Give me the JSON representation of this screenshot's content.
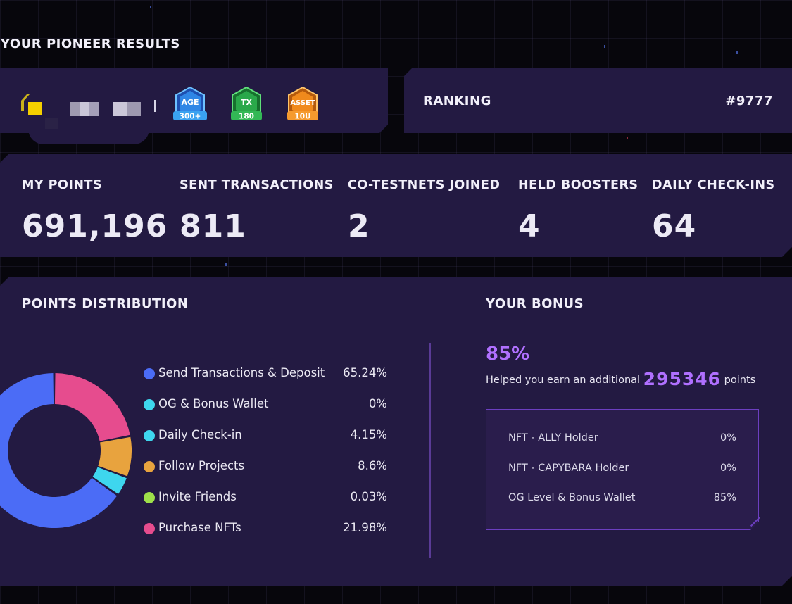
{
  "page_title": "YOUR PIONEER RESULTS",
  "badges": [
    {
      "name": "AGE",
      "value": "300+",
      "color": "#2f86e6"
    },
    {
      "name": "TX",
      "value": "180",
      "color": "#2aa84a"
    },
    {
      "name": "ASSET",
      "value": "10U",
      "color": "#f08a1c"
    }
  ],
  "ranking": {
    "label": "RANKING",
    "value": "#9777"
  },
  "stats": [
    {
      "label": "MY POINTS",
      "value": "691,196"
    },
    {
      "label": "SENT TRANSACTIONS",
      "value": "811"
    },
    {
      "label": "CO-TESTNETS JOINED",
      "value": "2"
    },
    {
      "label": "HELD BOOSTERS",
      "value": "4"
    },
    {
      "label": "DAILY CHECK-INS",
      "value": "64"
    }
  ],
  "distribution": {
    "title": "POINTS DISTRIBUTION",
    "items": [
      {
        "label": "Send Transactions & Deposit",
        "value": "65.24%",
        "color": "#4b6cf6"
      },
      {
        "label": "OG & Bonus Wallet",
        "value": "0%",
        "color": "#3ed6ee"
      },
      {
        "label": "Daily Check-in",
        "value": "4.15%",
        "color": "#3ed6ee"
      },
      {
        "label": "Follow Projects",
        "value": "8.6%",
        "color": "#e8a33e"
      },
      {
        "label": "Invite Friends",
        "value": "0.03%",
        "color": "#9ee04a"
      },
      {
        "label": "Purchase NFTs",
        "value": "21.98%",
        "color": "#e64c8e"
      }
    ]
  },
  "chart_data": {
    "type": "pie",
    "categories": [
      "Send Transactions & Deposit",
      "OG & Bonus Wallet",
      "Daily Check-in",
      "Follow Projects",
      "Invite Friends",
      "Purchase NFTs"
    ],
    "values": [
      65.24,
      0,
      4.15,
      8.6,
      0.03,
      21.98
    ],
    "colors": [
      "#4b6cf6",
      "#3ed6ee",
      "#3ed6ee",
      "#e8a33e",
      "#9ee04a",
      "#e64c8e"
    ]
  },
  "bonus": {
    "title": "YOUR BONUS",
    "percent": "85%",
    "text_before": "Helped you earn an additional",
    "points": "295346",
    "text_after": "points",
    "items": [
      {
        "label": "NFT - ALLY Holder",
        "value": "0%"
      },
      {
        "label": "NFT - CAPYBARA Holder",
        "value": "0%"
      },
      {
        "label": "OG Level & Bonus Wallet",
        "value": "85%"
      }
    ]
  }
}
